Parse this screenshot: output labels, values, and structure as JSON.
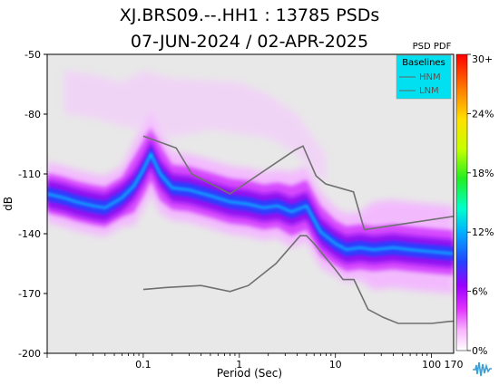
{
  "title": "XJ.BRS09.--.HH1 : 13785 PSDs",
  "subtitle": "07-JUN-2024 / 02-APR-2025",
  "colorbar_label": "PSD PDF",
  "chart_data": {
    "type": "heatmap",
    "title": "XJ.BRS09.--.HH1 : 13785 PSDs",
    "subtitle": "07-JUN-2024 / 02-APR-2025",
    "xlabel": "Period (Sec)",
    "ylabel": "dB",
    "x_scale": "log",
    "xlim": [
      0.01,
      170
    ],
    "ylim": [
      -200,
      -50
    ],
    "x_ticks": [
      {
        "value": 0.1,
        "label": "0.1"
      },
      {
        "value": 1,
        "label": "1"
      },
      {
        "value": 10,
        "label": "10"
      },
      {
        "value": 100,
        "label": "100"
      },
      {
        "value": 170,
        "label": "170"
      }
    ],
    "y_ticks": [
      -50,
      -80,
      -110,
      -140,
      -170,
      -200
    ],
    "colorbar": {
      "label": "PSD PDF",
      "ticks": [
        "0%",
        "6%",
        "12%",
        "18%",
        "24%",
        "30+"
      ],
      "colors": [
        "#ffffff",
        "#f9b3ff",
        "#e233ff",
        "#9900ff",
        "#2244ff",
        "#00b0ff",
        "#00ffcc",
        "#22ee22",
        "#c6ff00",
        "#ffe000",
        "#ff8000",
        "#ff0000"
      ]
    },
    "legend": {
      "title": "Baselines",
      "entries": [
        "HNM",
        "LNM"
      ],
      "placement": "top-right"
    },
    "series": [
      {
        "name": "HNM",
        "x": [
          0.1,
          0.22,
          0.32,
          0.8,
          3.8,
          4.6,
          6.3,
          7.9,
          15.4,
          20,
          354.8
        ],
        "y": [
          -91,
          -97,
          -110,
          -120,
          -98,
          -96,
          -111,
          -115,
          -119,
          -138,
          -129
        ]
      },
      {
        "name": "LNM",
        "x": [
          0.1,
          0.17,
          0.4,
          0.8,
          1.24,
          2.4,
          4.3,
          5,
          6,
          10,
          12,
          15.6,
          21.9,
          31.6,
          45,
          70,
          101,
          154,
          328,
          600
        ],
        "y": [
          -168,
          -167,
          -166,
          -169,
          -166,
          -155,
          -141,
          -141,
          -145,
          -158,
          -163,
          -163,
          -178,
          -182,
          -185,
          -185,
          -185,
          -184,
          -183,
          -183
        ]
      }
    ],
    "mode_curve": {
      "x": [
        0.01,
        0.015,
        0.02,
        0.03,
        0.04,
        0.06,
        0.08,
        0.1,
        0.12,
        0.15,
        0.2,
        0.3,
        0.5,
        0.8,
        1.2,
        1.8,
        2.5,
        3.5,
        5,
        7,
        10,
        13,
        18,
        25,
        40,
        60,
        100,
        170
      ],
      "y": [
        -120,
        -122,
        -124,
        -126,
        -127,
        -122,
        -116,
        -108,
        -100,
        -110,
        -117,
        -118,
        -121,
        -124,
        -125,
        -127,
        -126,
        -129,
        -126,
        -139,
        -145,
        -148,
        -147,
        -148,
        -147,
        -148,
        -149,
        -150
      ]
    }
  }
}
